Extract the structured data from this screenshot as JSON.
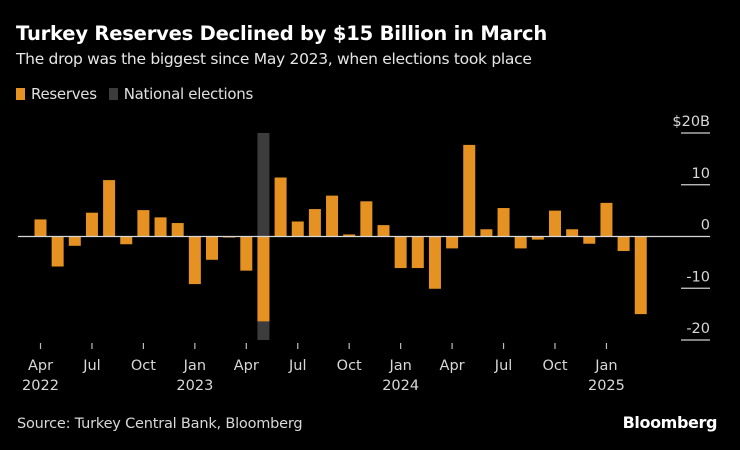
{
  "header": {
    "title": "Turkey Reserves Declined by $15 Billion in March",
    "subtitle": "The drop was the biggest since May 2023, when elections took place"
  },
  "legend": [
    {
      "label": "Reserves",
      "color": "#e59223"
    },
    {
      "label": "National elections",
      "color": "#3c3c3c"
    }
  ],
  "footer": {
    "source": "Source: Turkey Central Bank, Bloomberg",
    "brand": "Bloomberg"
  },
  "chart_data": {
    "type": "bar",
    "title": "Turkey Reserves Declined by $15 Billion in March",
    "subtitle": "The drop was the biggest since May 2023, when elections took place",
    "xlabel": "",
    "ylabel": "",
    "ylim": [
      -20,
      20
    ],
    "y_ticks": [
      {
        "value": 20,
        "label": "$20B"
      },
      {
        "value": 10,
        "label": "10"
      },
      {
        "value": 0,
        "label": "0"
      },
      {
        "value": -10,
        "label": "-10"
      },
      {
        "value": -20,
        "label": "-20"
      }
    ],
    "y_axis_side": "right",
    "grid": false,
    "legend_position": "top-left",
    "categories": [
      "Apr 2022",
      "May 2022",
      "Jun 2022",
      "Jul 2022",
      "Aug 2022",
      "Sep 2022",
      "Oct 2022",
      "Nov 2022",
      "Dec 2022",
      "Jan 2023",
      "Feb 2023",
      "Mar 2023",
      "Apr 2023",
      "May 2023",
      "Jun 2023",
      "Jul 2023",
      "Aug 2023",
      "Sep 2023",
      "Oct 2023",
      "Nov 2023",
      "Dec 2023",
      "Jan 2024",
      "Feb 2024",
      "Mar 2024",
      "Apr 2024",
      "May 2024",
      "Jun 2024",
      "Jul 2024",
      "Aug 2024",
      "Sep 2024",
      "Oct 2024",
      "Nov 2024",
      "Dec 2024",
      "Jan 2025",
      "Feb 2025",
      "Mar 2025"
    ],
    "series": [
      {
        "name": "Reserves",
        "color": "#e59223",
        "values": [
          3.3,
          -5.8,
          -1.8,
          4.6,
          10.9,
          -1.5,
          5.1,
          3.7,
          2.6,
          -9.2,
          -4.5,
          -0.2,
          -6.6,
          -16.4,
          11.4,
          2.9,
          5.3,
          7.9,
          0.4,
          6.8,
          2.2,
          -6.1,
          -6.1,
          -10.1,
          -2.3,
          17.7,
          1.4,
          5.5,
          -2.3,
          -0.6,
          5.0,
          1.4,
          -1.4,
          6.5,
          -2.8,
          -15.0
        ]
      }
    ],
    "highlights": [
      {
        "name": "National elections",
        "category": "May 2023",
        "color": "#3c3c3c",
        "range": [
          -20,
          20
        ]
      }
    ],
    "x_tick_labels": [
      {
        "category": "Apr 2022",
        "line1": "Apr",
        "line2": "2022"
      },
      {
        "category": "Jul 2022",
        "line1": "Jul",
        "line2": ""
      },
      {
        "category": "Oct 2022",
        "line1": "Oct",
        "line2": ""
      },
      {
        "category": "Jan 2023",
        "line1": "Jan",
        "line2": "2023"
      },
      {
        "category": "Apr 2023",
        "line1": "Apr",
        "line2": ""
      },
      {
        "category": "Jul 2023",
        "line1": "Jul",
        "line2": ""
      },
      {
        "category": "Oct 2023",
        "line1": "Oct",
        "line2": ""
      },
      {
        "category": "Jan 2024",
        "line1": "Jan",
        "line2": "2024"
      },
      {
        "category": "Apr 2024",
        "line1": "Apr",
        "line2": ""
      },
      {
        "category": "Jul 2024",
        "line1": "Jul",
        "line2": ""
      },
      {
        "category": "Oct 2024",
        "line1": "Oct",
        "line2": ""
      },
      {
        "category": "Jan 2025",
        "line1": "Jan",
        "line2": "2025"
      }
    ]
  }
}
